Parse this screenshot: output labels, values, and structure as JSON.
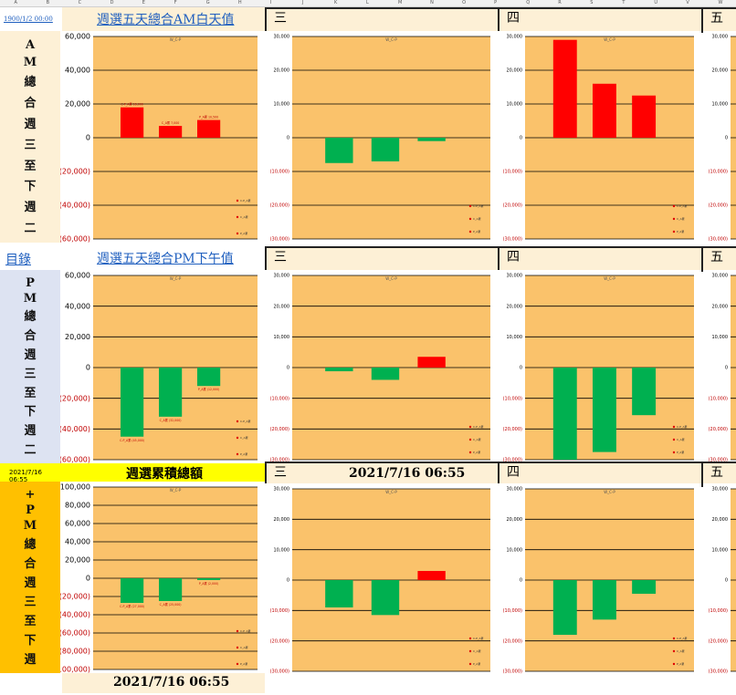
{
  "sheet": {
    "col_letters": [
      "A",
      "B",
      "C",
      "D",
      "E",
      "F",
      "G",
      "H",
      "I",
      "J",
      "K",
      "L",
      "M",
      "N",
      "O",
      "P",
      "Q",
      "R",
      "S",
      "T",
      "U",
      "V",
      "W"
    ]
  },
  "row1": {
    "timestamp": "1900/1/2 00:00",
    "title": "週選五天總合AM白天值",
    "vertical_label": "AM總合週三至下週二",
    "day3": "三",
    "day4": "四",
    "day5": "五"
  },
  "row2": {
    "link": "目錄",
    "title": "週選五天總合PM下午值",
    "vertical_label": "PM總合週三至下週二",
    "day3": "三",
    "day4": "四",
    "day5": "五"
  },
  "row3": {
    "timestamp": "2021/7/16 06:55",
    "title": "週選累積總額",
    "vertical_label": "+PM總合週三至下週",
    "day3": "三",
    "day4": "四",
    "day5": "五",
    "date_mid": "2021/7/16 06:55",
    "date_bottom": "2021/7/16 06:55"
  },
  "chart_data": [
    {
      "id": "am_total",
      "type": "bar",
      "title": "W_C-P",
      "categories": [
        "C-P",
        "C",
        "P"
      ],
      "values": [
        18000,
        7000,
        10500
      ],
      "colors": [
        "#ff0000",
        "#ff0000",
        "#ff0000"
      ],
      "ylim": [
        -60000,
        60000
      ],
      "ticks": [
        60000,
        40000,
        20000,
        0,
        -20000,
        -40000,
        -60000
      ],
      "tick_labels": [
        "60,000",
        "40,000",
        "20,000",
        "0",
        "(20,000)",
        "(40,000)",
        "(60,000)"
      ],
      "data_labels": [
        "C-P_A累 18,000",
        "C_A累 7,000",
        "P_A累 10,500"
      ],
      "legend": [
        "C-P_A累",
        "C_A累",
        "P_A累"
      ]
    },
    {
      "id": "am_wed",
      "type": "bar",
      "title": "W_C-P",
      "categories": [
        "C-P",
        "C",
        "P"
      ],
      "values": [
        -7500,
        -7000,
        -1000
      ],
      "colors": [
        "#00b050",
        "#00b050",
        "#00b050"
      ],
      "ylim": [
        -30000,
        30000
      ],
      "ticks": [
        30000,
        20000,
        10000,
        0,
        -10000,
        -20000,
        -30000
      ],
      "tick_labels": [
        "30,000",
        "20,000",
        "10,000",
        "0",
        "(10,000)",
        "(20,000)",
        "(30,000)"
      ],
      "legend": [
        "C-P_A累",
        "C_A累",
        "P_A累"
      ]
    },
    {
      "id": "am_thu",
      "type": "bar",
      "title": "W_C-P",
      "categories": [
        "C-P",
        "C",
        "P"
      ],
      "values": [
        29000,
        16000,
        12500
      ],
      "colors": [
        "#ff0000",
        "#ff0000",
        "#ff0000"
      ],
      "ylim": [
        -30000,
        30000
      ],
      "ticks": [
        30000,
        20000,
        10000,
        0,
        -10000,
        -20000,
        -30000
      ],
      "tick_labels": [
        "30,000",
        "20,000",
        "10,000",
        "0",
        "(10,000)",
        "(20,000)",
        "(30,000)"
      ],
      "legend": [
        "C-P_A累",
        "C_A累",
        "P_A累"
      ]
    },
    {
      "id": "pm_total",
      "type": "bar",
      "title": "W_C-P",
      "categories": [
        "C-P",
        "C",
        "P"
      ],
      "values": [
        -45000,
        -32000,
        -12000
      ],
      "colors": [
        "#00b050",
        "#00b050",
        "#00b050"
      ],
      "ylim": [
        -60000,
        60000
      ],
      "ticks": [
        60000,
        40000,
        20000,
        0,
        -20000,
        -40000,
        -60000
      ],
      "tick_labels": [
        "60,000",
        "40,000",
        "20,000",
        "0",
        "(20,000)",
        "(40,000)",
        "(60,000)"
      ],
      "data_labels": [
        "C-P_A累 (45,000)",
        "C_A累 (32,000)",
        "P_A累 (12,000)"
      ],
      "legend": [
        "C-P_A累",
        "C_A累",
        "P_A累"
      ]
    },
    {
      "id": "pm_wed",
      "type": "bar",
      "title": "W_C-P",
      "categories": [
        "C-P",
        "C",
        "P"
      ],
      "values": [
        -1200,
        -4000,
        3500
      ],
      "colors": [
        "#00b050",
        "#00b050",
        "#ff0000"
      ],
      "ylim": [
        -30000,
        30000
      ],
      "ticks": [
        30000,
        20000,
        10000,
        0,
        -10000,
        -20000,
        -30000
      ],
      "tick_labels": [
        "30,000",
        "20,000",
        "10,000",
        "0",
        "(10,000)",
        "(20,000)",
        "(30,000)"
      ],
      "legend": [
        "C-P_A累",
        "C_A累",
        "P_A累"
      ]
    },
    {
      "id": "pm_thu",
      "type": "bar",
      "title": "W_C-P",
      "categories": [
        "C-P",
        "C",
        "P"
      ],
      "values": [
        -30000,
        -27500,
        -15500
      ],
      "colors": [
        "#00b050",
        "#00b050",
        "#00b050"
      ],
      "ylim": [
        -30000,
        30000
      ],
      "ticks": [
        30000,
        20000,
        10000,
        0,
        -10000,
        -20000,
        -30000
      ],
      "tick_labels": [
        "30,000",
        "20,000",
        "10,000",
        "0",
        "(10,000)",
        "(20,000)",
        "(30,000)"
      ],
      "legend": [
        "C-P_A累",
        "C_A累",
        "P_A累"
      ]
    },
    {
      "id": "cum_total",
      "type": "bar",
      "title": "W_C-P",
      "categories": [
        "C-P",
        "C",
        "P"
      ],
      "values": [
        -27000,
        -25000,
        -2000
      ],
      "colors": [
        "#00b050",
        "#00b050",
        "#00b050"
      ],
      "ylim": [
        -100000,
        100000
      ],
      "ticks": [
        100000,
        80000,
        60000,
        40000,
        20000,
        0,
        -20000,
        -40000,
        -60000,
        -80000,
        -100000
      ],
      "tick_labels": [
        "100,000",
        "80,000",
        "60,000",
        "40,000",
        "20,000",
        "0",
        "(20,000)",
        "(40,000)",
        "(60,000)",
        "(80,000)",
        "(100,000)"
      ],
      "data_labels": [
        "C-P_A累 (27,000)",
        "C_A累 (25,000)",
        "P_A累 (2,000)"
      ],
      "legend": [
        "C-P_A累",
        "C_A累",
        "P_A累"
      ]
    },
    {
      "id": "cum_wed",
      "type": "bar",
      "title": "W_C-P",
      "categories": [
        "C-P",
        "C",
        "P"
      ],
      "values": [
        -9000,
        -11500,
        3000
      ],
      "colors": [
        "#00b050",
        "#00b050",
        "#ff0000"
      ],
      "ylim": [
        -30000,
        30000
      ],
      "ticks": [
        30000,
        20000,
        10000,
        0,
        -10000,
        -20000,
        -30000
      ],
      "tick_labels": [
        "30,000",
        "20,000",
        "10,000",
        "0",
        "(10,000)",
        "(20,000)",
        "(30,000)"
      ],
      "legend": [
        "C-P_A累",
        "C_A累",
        "P_A累"
      ]
    },
    {
      "id": "cum_thu",
      "type": "bar",
      "title": "W_C-P",
      "categories": [
        "C-P",
        "C",
        "P"
      ],
      "values": [
        -18000,
        -13000,
        -4500
      ],
      "colors": [
        "#00b050",
        "#00b050",
        "#00b050"
      ],
      "ylim": [
        -30000,
        30000
      ],
      "ticks": [
        30000,
        20000,
        10000,
        0,
        -10000,
        -20000,
        -30000
      ],
      "tick_labels": [
        "30,000",
        "20,000",
        "10,000",
        "0",
        "(10,000)",
        "(20,000)",
        "(30,000)"
      ],
      "legend": [
        "C-P_A累",
        "C_A累",
        "P_A累"
      ]
    }
  ]
}
